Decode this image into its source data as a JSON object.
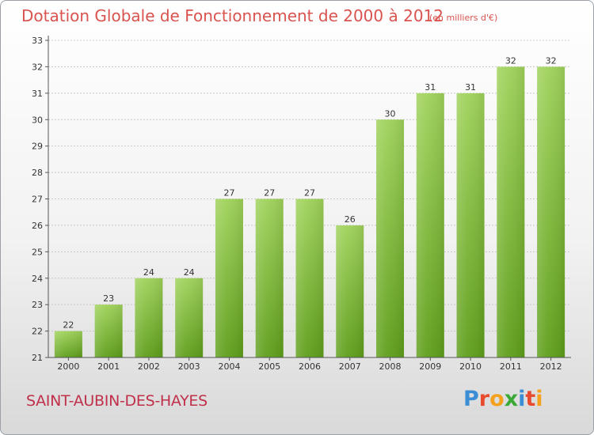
{
  "title": "Dotation Globale de Fonctionnement de 2000 à 2012",
  "unit_note": "(en milliers d'€)",
  "commune": "SAINT-AUBIN-DES-HAYES",
  "logo": {
    "text": "Proxiti",
    "letter_colors": [
      "#3b8ed6",
      "#e84a2f",
      "#f4a11d",
      "#3aa935",
      "#3b8ed6",
      "#e84a2f",
      "#f4a11d"
    ]
  },
  "colors": {
    "bar_top": "#9fd25a",
    "bar_bottom": "#5e9e1a",
    "axis": "#555555",
    "grid": "#c8c8c8",
    "title": "#d9534f",
    "commune": "#c0304a"
  },
  "chart_data": {
    "type": "bar",
    "categories": [
      "2000",
      "2001",
      "2002",
      "2003",
      "2004",
      "2005",
      "2006",
      "2007",
      "2008",
      "2009",
      "2010",
      "2011",
      "2012"
    ],
    "values": [
      22,
      23,
      24,
      24,
      27,
      27,
      27,
      26,
      30,
      31,
      31,
      32,
      32
    ],
    "ylim": [
      21,
      33
    ],
    "yticks": [
      21,
      22,
      23,
      24,
      25,
      26,
      27,
      28,
      29,
      30,
      31,
      32,
      33
    ],
    "grid": true,
    "xlabel": "",
    "ylabel": ""
  }
}
